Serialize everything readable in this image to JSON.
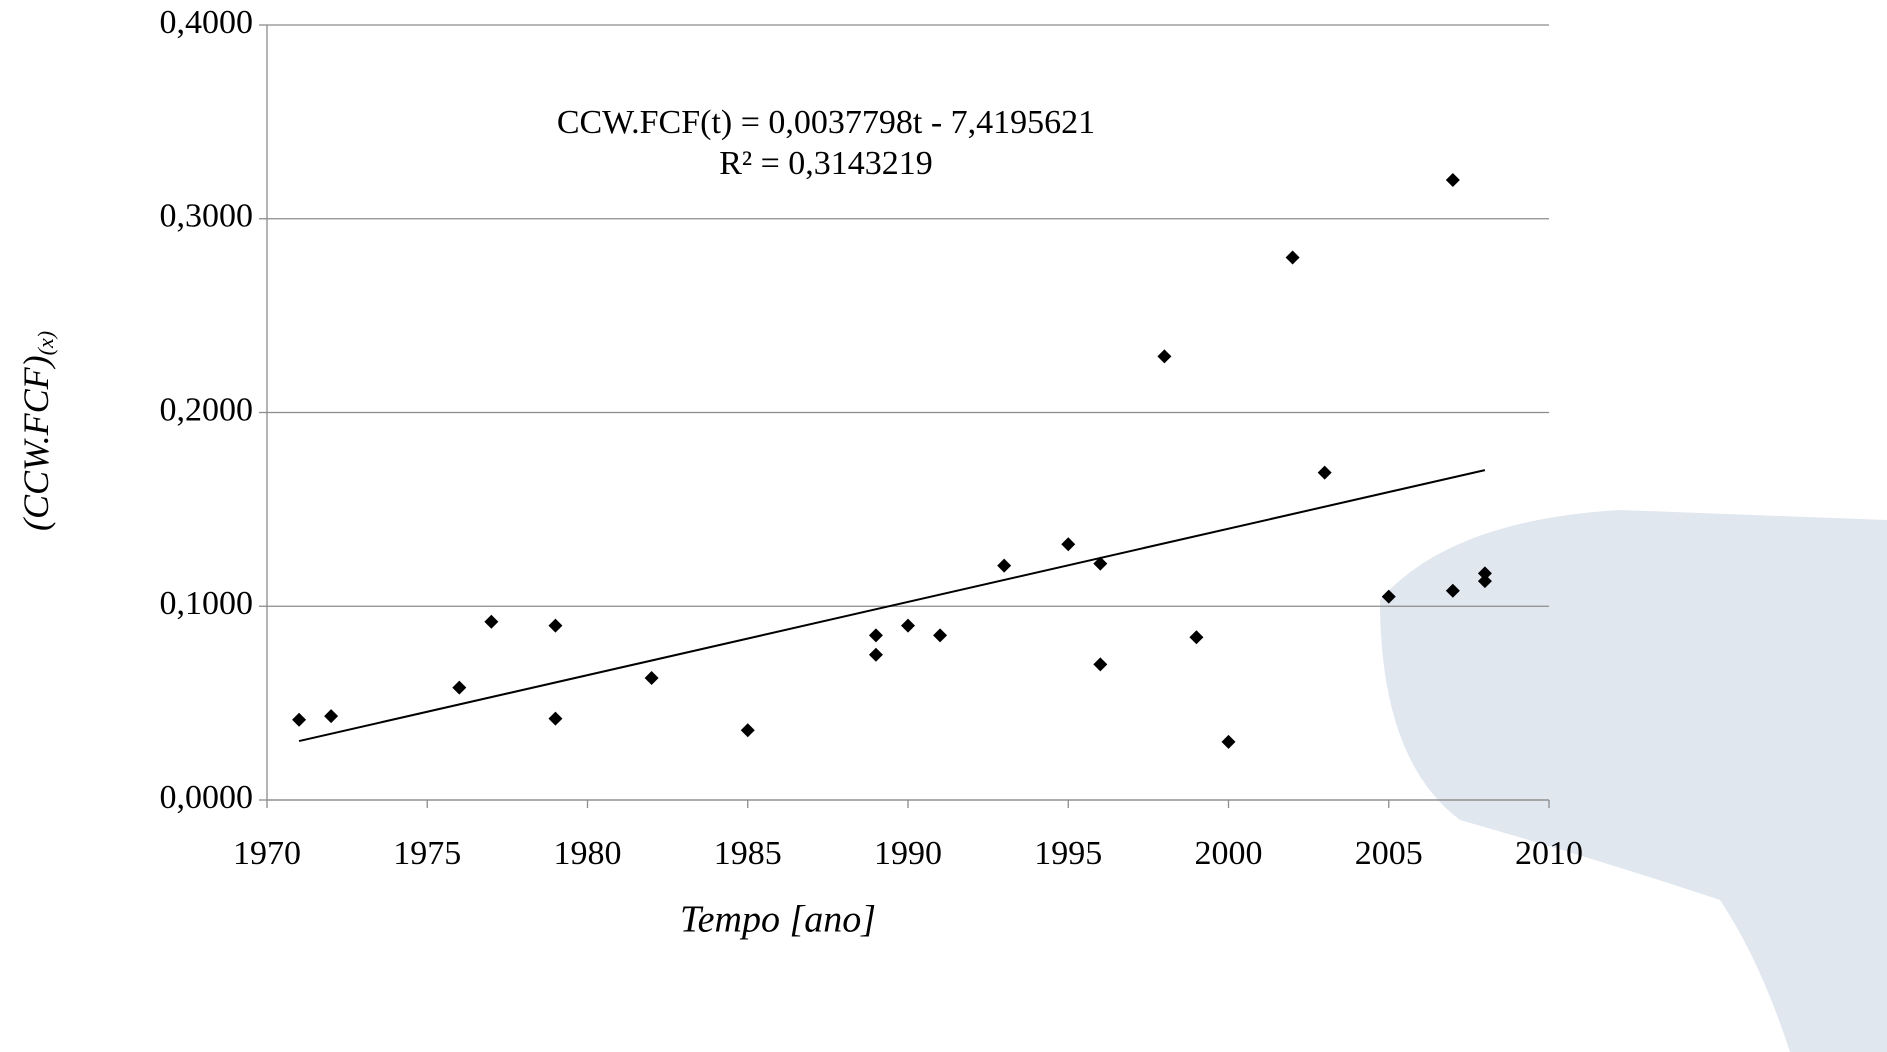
{
  "chart_data": {
    "type": "scatter",
    "annotation": [
      "CCW.FCF(t) = 0,0037798t - 7,4195621",
      "R² = 0,3143219"
    ],
    "x_label": "Tempo [ano]",
    "y_label": "(CCW.FCF)",
    "y_label_sub": "(x)",
    "series": [
      {
        "color": "#000000",
        "x": [
          1971,
          1972,
          1976,
          1977,
          1979,
          1979,
          1982,
          1985,
          1989,
          1989,
          1990,
          1991,
          1993,
          1995,
          1996,
          1996,
          1998,
          1999,
          2000,
          2002,
          2003,
          2005,
          2007,
          2007,
          2008,
          2008
        ],
        "values": [
          0.0414,
          0.0433,
          0.058,
          0.092,
          0.09,
          0.042,
          0.063,
          0.036,
          0.085,
          0.075,
          0.09,
          0.085,
          0.121,
          0.132,
          0.122,
          0.07,
          0.229,
          0.084,
          0.03,
          0.28,
          0.169,
          0.105,
          0.32,
          0.108,
          0.117,
          0.113
        ]
      }
    ],
    "trendline": {
      "color": "#000000",
      "x": [
        1971,
        2008
      ],
      "values": [
        0.0304237,
        0.1702763
      ]
    },
    "xlim": [
      1970,
      2010
    ],
    "xticks": [
      1970,
      1975,
      1980,
      1985,
      1990,
      1995,
      2000,
      2005,
      2010
    ],
    "ylim": [
      0,
      0.4
    ],
    "yticks": [
      {
        "value": 0,
        "label": "0,0000"
      },
      {
        "value": 0.1,
        "label": "0,1000"
      },
      {
        "value": 0.2,
        "label": "0,2000"
      },
      {
        "value": 0.3,
        "label": "0,3000"
      },
      {
        "value": 0.4,
        "label": "0,4000"
      }
    ],
    "grid": true
  }
}
